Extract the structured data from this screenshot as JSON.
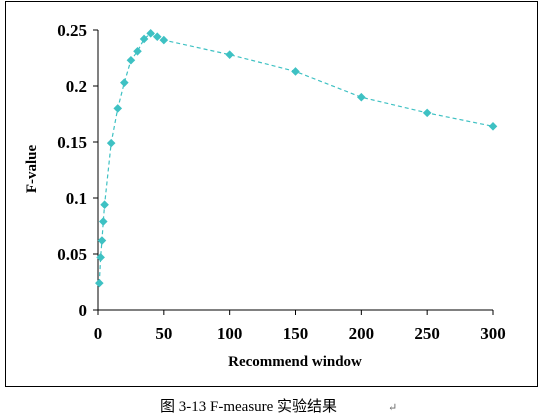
{
  "chart_data": {
    "type": "line",
    "xlabel": "Recommend window",
    "ylabel": "F-value",
    "xlim": [
      0,
      300
    ],
    "ylim": [
      0,
      0.25
    ],
    "xticks": [
      "0",
      "50",
      "100",
      "150",
      "200",
      "250",
      "300"
    ],
    "yticks": [
      "0",
      "0.05",
      "0.1",
      "0.15",
      "0.2",
      "0.25"
    ],
    "grid": false,
    "legend": "none",
    "series_color": "#3ec1c3",
    "series": [
      {
        "points": [
          [
            1,
            0.024
          ],
          [
            2,
            0.047
          ],
          [
            3,
            0.062
          ],
          [
            4,
            0.079
          ],
          [
            5,
            0.094
          ],
          [
            10,
            0.149
          ],
          [
            15,
            0.18
          ],
          [
            20,
            0.203
          ],
          [
            25,
            0.223
          ],
          [
            30,
            0.231
          ],
          [
            35,
            0.242
          ],
          [
            40,
            0.247
          ],
          [
            45,
            0.244
          ],
          [
            50,
            0.241
          ],
          [
            100,
            0.228
          ],
          [
            150,
            0.213
          ],
          [
            200,
            0.19
          ],
          [
            250,
            0.176
          ],
          [
            300,
            0.164
          ]
        ]
      }
    ]
  },
  "caption": {
    "text": "图 3-13 F-measure 实验结果",
    "mark": "↵"
  }
}
